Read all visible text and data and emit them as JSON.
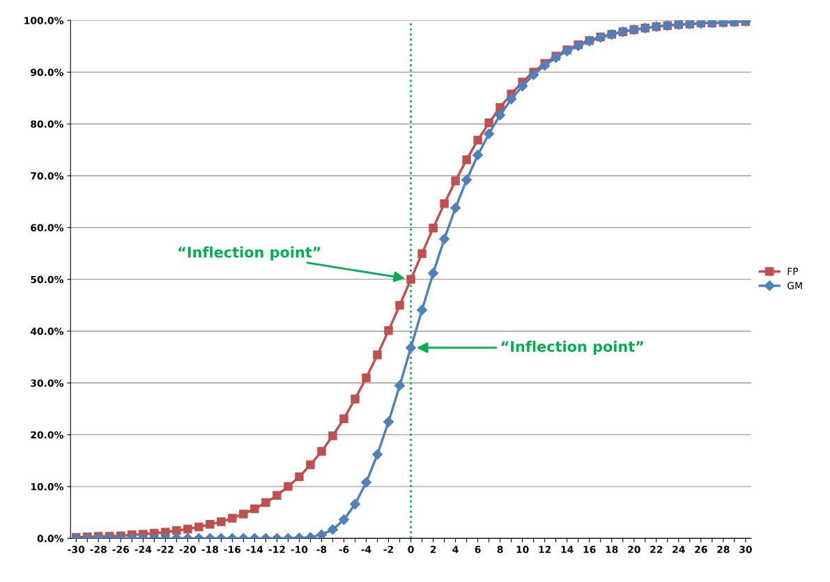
{
  "chart_data": {
    "type": "line",
    "categories": [
      "-30",
      null,
      "-28",
      null,
      "-26",
      null,
      "-24",
      null,
      "-22",
      null,
      "-20",
      null,
      "-18",
      null,
      "-16",
      null,
      "-14",
      null,
      "-12",
      null,
      "-10",
      null,
      "-8",
      null,
      "-6",
      null,
      "-4",
      null,
      "-2",
      null,
      "0",
      null,
      "2",
      null,
      "4",
      null,
      "6",
      null,
      "8",
      null,
      "10",
      null,
      "12",
      null,
      "14",
      null,
      "16",
      null,
      "18",
      null,
      "20",
      null,
      "22",
      null,
      "24",
      null,
      "26",
      null,
      "28",
      null,
      "30"
    ],
    "series": [
      {
        "name": "FP",
        "color": "#c0504d",
        "marker": "square",
        "values": [
          0.2,
          0.3,
          0.4,
          0.4,
          0.5,
          0.7,
          0.8,
          1.0,
          1.2,
          1.5,
          1.8,
          2.2,
          2.7,
          3.2,
          3.9,
          4.7,
          5.7,
          6.9,
          8.3,
          10.0,
          11.9,
          14.2,
          16.8,
          19.8,
          23.1,
          26.9,
          31.0,
          35.4,
          40.1,
          45.0,
          50.0,
          55.0,
          59.9,
          64.6,
          69.0,
          73.1,
          76.9,
          80.2,
          83.2,
          85.8,
          88.1,
          90.0,
          91.7,
          93.1,
          94.3,
          95.3,
          96.1,
          96.8,
          97.3,
          97.8,
          98.2,
          98.5,
          98.8,
          99.0,
          99.2,
          99.3,
          99.5,
          99.5,
          99.6,
          99.7,
          99.8
        ]
      },
      {
        "name": "GM",
        "color": "#4f81bd",
        "marker": "diamond",
        "values": [
          0.0,
          0.0,
          0.0,
          0.0,
          0.0,
          0.0,
          0.0,
          0.0,
          0.0,
          0.0,
          0.0,
          0.0,
          0.0,
          0.0,
          0.0,
          0.0,
          0.0,
          0.0,
          0.0,
          0.0,
          0.1,
          0.2,
          0.7,
          1.7,
          3.6,
          6.6,
          10.8,
          16.2,
          22.5,
          29.5,
          36.8,
          44.1,
          51.2,
          57.8,
          63.8,
          69.2,
          74.0,
          78.1,
          81.7,
          84.8,
          87.3,
          89.5,
          91.3,
          92.8,
          94.1,
          95.1,
          96.0,
          96.7,
          97.3,
          97.8,
          98.2,
          98.5,
          98.8,
          99.0,
          99.2,
          99.3,
          99.4,
          99.5,
          99.6,
          99.7,
          99.8
        ]
      }
    ],
    "ylim": [
      0,
      100
    ],
    "yticks": [
      {
        "value": 0,
        "label": "0.0%"
      },
      {
        "value": 10,
        "label": "10.0%"
      },
      {
        "value": 20,
        "label": "20.0%"
      },
      {
        "value": 30,
        "label": "30.0%"
      },
      {
        "value": 40,
        "label": "40.0%"
      },
      {
        "value": 50,
        "label": "50.0%"
      },
      {
        "value": 60,
        "label": "60.0%"
      },
      {
        "value": 70,
        "label": "70.0%"
      },
      {
        "value": 80,
        "label": "80.0%"
      },
      {
        "value": 90,
        "label": "90.0%"
      },
      {
        "value": 100,
        "label": "100.0%"
      }
    ],
    "grid": "y",
    "legend": "right",
    "line_style": "solid",
    "ref_lines": [
      {
        "axis": "x",
        "value": "0",
        "color": "#00b050",
        "line_style": "dotted"
      }
    ],
    "annotations": [
      "“Inflection point”",
      "“Inflection point”"
    ]
  }
}
